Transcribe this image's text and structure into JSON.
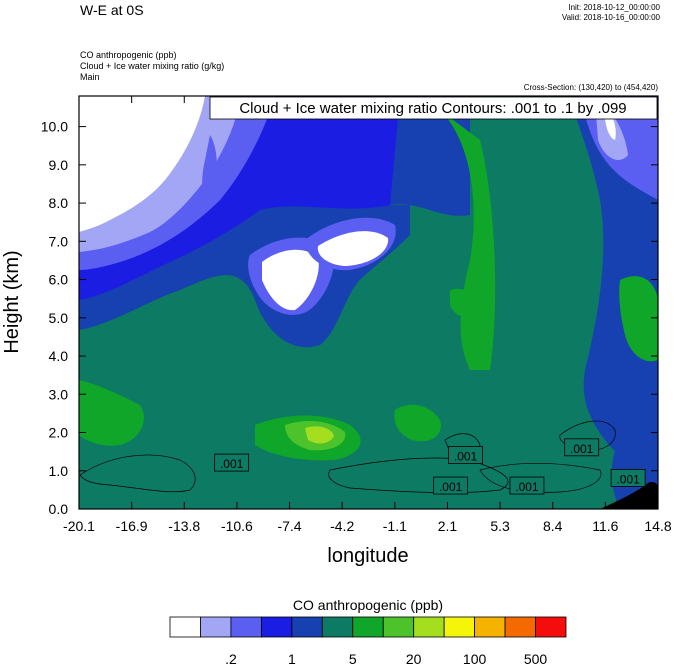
{
  "header": {
    "title": "W-E at 0S",
    "init": "Init: 2018-10-12_00:00:00",
    "valid": "Valid: 2018-10-16_00:00:00",
    "subtitles": [
      "CO anthropogenic   (ppb)",
      "Cloud + Ice water mixing ratio   (g/kg)",
      "Main"
    ],
    "cross_section": "Cross-Section: (130,420) to (454,420)"
  },
  "chart_data": {
    "type": "heatmap",
    "xlabel": "longitude",
    "ylabel": "Height (km)",
    "x_ticks": [
      "-20.1",
      "-16.9",
      "-13.8",
      "-10.6",
      "-7.4",
      "-4.2",
      "-1.1",
      "2.1",
      "5.3",
      "8.4",
      "11.6",
      "14.8"
    ],
    "y_ticks": [
      "0.0",
      "1.0",
      "2.0",
      "3.0",
      "4.0",
      "5.0",
      "6.0",
      "7.0",
      "8.0",
      "9.0",
      "10.0"
    ],
    "xlim": [
      -20.1,
      14.8
    ],
    "ylim": [
      0,
      10.8
    ],
    "contour_legend": "Cloud + Ice water mixing ratio Contours: .001 to .1 by .099",
    "contour_labels": [
      {
        "text": ".001",
        "x": -10.9,
        "y": 1.2
      },
      {
        "text": ".001",
        "x": 3.2,
        "y": 1.4
      },
      {
        "text": ".001",
        "x": 2.3,
        "y": 0.6
      },
      {
        "text": ".001",
        "x": 6.9,
        "y": 0.6
      },
      {
        "text": ".001",
        "x": 10.2,
        "y": 1.6
      },
      {
        "text": ".001",
        "x": 13.0,
        "y": 0.8
      }
    ],
    "colorbar": {
      "title": "CO anthropogenic  (ppb)",
      "labels": [
        ".2",
        "1",
        "5",
        "20",
        "100",
        "500"
      ],
      "colors": [
        "#ffffff",
        "#a3a6f5",
        "#5a5ff2",
        "#1b1de3",
        "#1740b0",
        "#0d7a64",
        "#0fa62a",
        "#4dc32b",
        "#a4de1e",
        "#f5f50a",
        "#f5b300",
        "#f56a00",
        "#f50d0d"
      ]
    }
  }
}
